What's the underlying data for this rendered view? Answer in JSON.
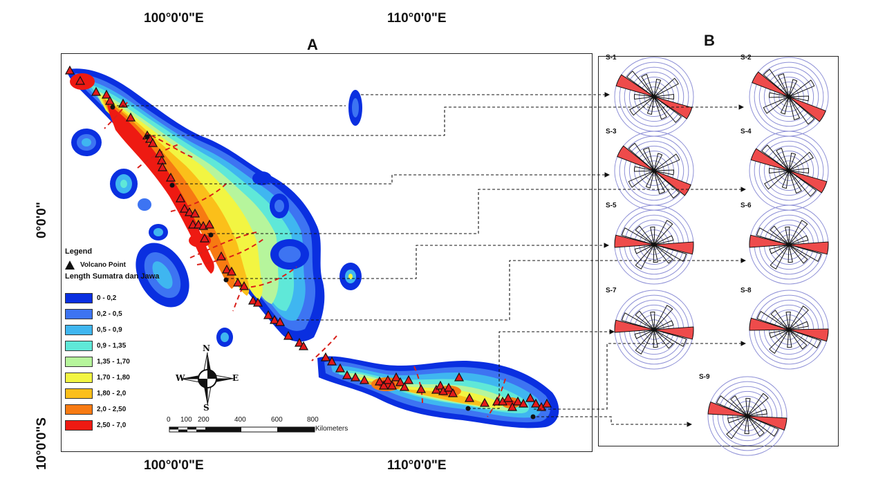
{
  "figure": {
    "panel_a_label": "A",
    "panel_b_label": "B",
    "top_lon_left": "100°0'0\"E",
    "top_lon_right": "110°0'0\"E",
    "bottom_lon_left": "100°0'0\"E",
    "bottom_lon_right": "110°0'0\"E",
    "lat_equator": "0°0'0\"",
    "lat_south": "10°0'0\"S"
  },
  "legend": {
    "title": "Legend",
    "volcano_label": "Volcano Point",
    "density_label": "Length Sumatra dan Jawa",
    "classes": [
      {
        "label": "0 - 0,2",
        "color": "#0a2fe0"
      },
      {
        "label": "0,2 - 0,5",
        "color": "#3d74f2"
      },
      {
        "label": "0,5 - 0,9",
        "color": "#3fb6f0"
      },
      {
        "label": "0,9 - 1,35",
        "color": "#5fe8d8"
      },
      {
        "label": "1,35 - 1,70",
        "color": "#b6f59c"
      },
      {
        "label": "1,70 - 1,80",
        "color": "#f2f542"
      },
      {
        "label": "1,80 - 2,0",
        "color": "#fbbf1a"
      },
      {
        "label": "2,0 - 2,50",
        "color": "#f77a12"
      },
      {
        "label": "2,50 - 7,0",
        "color": "#ee1a12"
      }
    ]
  },
  "compass": {
    "n": "N",
    "s": "S",
    "e": "E",
    "w": "W"
  },
  "scale": {
    "ticks": [
      "0",
      "100",
      "200",
      "400",
      "600",
      "800"
    ],
    "unit": "Kilometers"
  },
  "roses": [
    "S-1",
    "S-2",
    "S-3",
    "S-4",
    "S-5",
    "S-6",
    "S-7",
    "S-8",
    "S-9"
  ]
}
